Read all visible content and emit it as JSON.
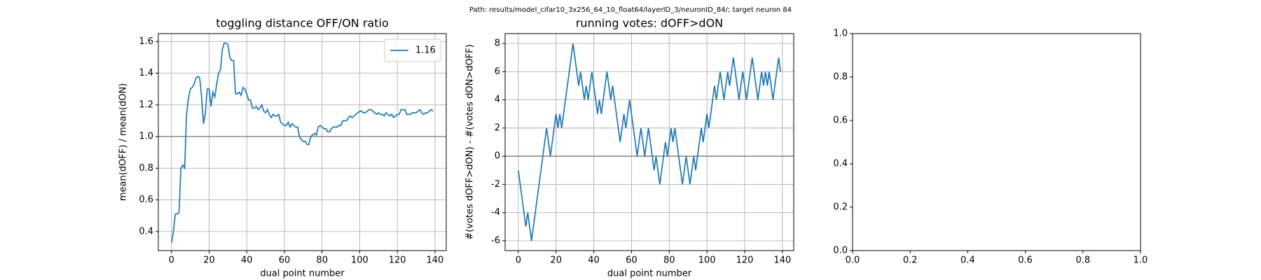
{
  "title": "Path: results/model_cifar10_3x256_64_10_float64/layerID_3/neuronID_84/; target neuron 84",
  "chart_data": [
    {
      "type": "line",
      "title": "toggling distance OFF/ON ratio",
      "xlabel": "dual point number",
      "ylabel": "mean(dOFF) / mean(dON)",
      "x": [
        0,
        1,
        2,
        3,
        4,
        5,
        6,
        7,
        8,
        9,
        10,
        11,
        12,
        13,
        14,
        15,
        16,
        17,
        18,
        19,
        20,
        21,
        22,
        23,
        24,
        25,
        26,
        27,
        28,
        29,
        30,
        31,
        32,
        33,
        34,
        35,
        36,
        37,
        38,
        39,
        40,
        41,
        42,
        43,
        44,
        45,
        46,
        47,
        48,
        49,
        50,
        51,
        52,
        53,
        54,
        55,
        56,
        57,
        58,
        59,
        60,
        61,
        62,
        63,
        64,
        65,
        66,
        67,
        68,
        69,
        70,
        71,
        72,
        73,
        74,
        75,
        76,
        77,
        78,
        79,
        80,
        81,
        82,
        83,
        84,
        85,
        86,
        87,
        88,
        89,
        90,
        91,
        92,
        93,
        94,
        95,
        96,
        97,
        98,
        99,
        100,
        101,
        102,
        103,
        104,
        105,
        106,
        107,
        108,
        109,
        110,
        111,
        112,
        113,
        114,
        115,
        116,
        117,
        118,
        119,
        120,
        121,
        122,
        123,
        124,
        125,
        126,
        127,
        128,
        129,
        130,
        131,
        132,
        133,
        134,
        135,
        136,
        137,
        138,
        139
      ],
      "series": [
        {
          "name": "1.16",
          "color": "#1f77b4",
          "values": [
            0.33,
            0.4,
            0.51,
            0.51,
            0.52,
            0.8,
            0.82,
            0.8,
            1.14,
            1.24,
            1.3,
            1.31,
            1.33,
            1.37,
            1.38,
            1.37,
            1.25,
            1.08,
            1.15,
            1.3,
            1.3,
            1.19,
            1.28,
            1.25,
            1.33,
            1.4,
            1.42,
            1.55,
            1.59,
            1.59,
            1.58,
            1.5,
            1.48,
            1.48,
            1.27,
            1.27,
            1.28,
            1.26,
            1.31,
            1.3,
            1.27,
            1.23,
            1.23,
            1.18,
            1.18,
            1.19,
            1.17,
            1.18,
            1.2,
            1.16,
            1.15,
            1.17,
            1.14,
            1.12,
            1.14,
            1.13,
            1.13,
            1.14,
            1.09,
            1.08,
            1.07,
            1.07,
            1.09,
            1.06,
            1.08,
            1.07,
            1.06,
            1.06,
            1.0,
            0.98,
            0.97,
            0.97,
            0.95,
            0.95,
            1.0,
            1.01,
            1.02,
            1.01,
            1.06,
            1.07,
            1.06,
            1.05,
            1.05,
            1.03,
            1.03,
            1.05,
            1.06,
            1.06,
            1.06,
            1.07,
            1.07,
            1.1,
            1.1,
            1.1,
            1.12,
            1.13,
            1.12,
            1.13,
            1.14,
            1.15,
            1.16,
            1.16,
            1.15,
            1.15,
            1.16,
            1.17,
            1.17,
            1.16,
            1.15,
            1.14,
            1.15,
            1.14,
            1.14,
            1.13,
            1.15,
            1.14,
            1.13,
            1.14,
            1.12,
            1.13,
            1.14,
            1.14,
            1.17,
            1.17,
            1.17,
            1.14,
            1.14,
            1.14,
            1.15,
            1.15,
            1.15,
            1.16,
            1.17,
            1.15,
            1.14,
            1.15,
            1.15,
            1.16,
            1.17,
            1.16
          ]
        }
      ],
      "xlim": [
        -7,
        146
      ],
      "xticks": [
        0,
        20,
        40,
        60,
        80,
        100,
        120,
        140
      ],
      "ylim": [
        0.28,
        1.65
      ],
      "yticks": [
        0.4,
        0.6,
        0.8,
        {
          "value": 1,
          "label": "1.0"
        },
        1.2,
        1.4,
        1.6
      ],
      "hline": 1,
      "hline_color": "#808080",
      "grid": true,
      "legend": "upper-right"
    },
    {
      "type": "line",
      "title": "running votes: dOFF>dON",
      "xlabel": "dual point number",
      "ylabel": "#(votes dOFF>dON) - #(votes dON>dOFF)",
      "x": [
        0,
        1,
        2,
        3,
        4,
        5,
        6,
        7,
        8,
        9,
        10,
        11,
        12,
        13,
        14,
        15,
        16,
        17,
        18,
        19,
        20,
        21,
        22,
        23,
        24,
        25,
        26,
        27,
        28,
        29,
        30,
        31,
        32,
        33,
        34,
        35,
        36,
        37,
        38,
        39,
        40,
        41,
        42,
        43,
        44,
        45,
        46,
        47,
        48,
        49,
        50,
        51,
        52,
        53,
        54,
        55,
        56,
        57,
        58,
        59,
        60,
        61,
        62,
        63,
        64,
        65,
        66,
        67,
        68,
        69,
        70,
        71,
        72,
        73,
        74,
        75,
        76,
        77,
        78,
        79,
        80,
        81,
        82,
        83,
        84,
        85,
        86,
        87,
        88,
        89,
        90,
        91,
        92,
        93,
        94,
        95,
        96,
        97,
        98,
        99,
        100,
        101,
        102,
        103,
        104,
        105,
        106,
        107,
        108,
        109,
        110,
        111,
        112,
        113,
        114,
        115,
        116,
        117,
        118,
        119,
        120,
        121,
        122,
        123,
        124,
        125,
        126,
        127,
        128,
        129,
        130,
        131,
        132,
        133,
        134,
        135,
        136,
        137,
        138,
        139
      ],
      "series": [
        {
          "color": "#1f77b4",
          "values": [
            -1,
            -2,
            -3,
            -4,
            -5,
            -4,
            -5,
            -6,
            -5,
            -4,
            -3,
            -2,
            -1,
            0,
            1,
            2,
            1,
            0,
            1,
            2,
            3,
            2,
            3,
            2,
            3,
            4,
            5,
            6,
            7,
            8,
            7,
            6,
            5,
            6,
            5,
            4,
            5,
            4,
            5,
            6,
            5,
            4,
            3,
            4,
            3,
            4,
            5,
            6,
            5,
            4,
            5,
            4,
            3,
            2,
            1,
            2,
            3,
            2,
            3,
            4,
            3,
            2,
            1,
            0,
            1,
            2,
            1,
            0,
            1,
            2,
            1,
            0,
            -1,
            0,
            -1,
            -2,
            -1,
            0,
            1,
            0,
            1,
            2,
            1,
            2,
            1,
            0,
            -1,
            -2,
            -1,
            0,
            -1,
            -2,
            -1,
            0,
            -1,
            0,
            1,
            2,
            1,
            2,
            3,
            2,
            3,
            4,
            5,
            4,
            5,
            6,
            5,
            4,
            5,
            6,
            5,
            6,
            7,
            6,
            5,
            4,
            5,
            6,
            5,
            4,
            5,
            6,
            7,
            6,
            5,
            4,
            5,
            6,
            5,
            6,
            5,
            6,
            5,
            4,
            5,
            6,
            7,
            6
          ]
        }
      ],
      "xlim": [
        -7,
        146
      ],
      "xticks": [
        0,
        20,
        40,
        60,
        80,
        100,
        120,
        140
      ],
      "ylim": [
        -6.7,
        8.7
      ],
      "yticks": [
        -6,
        -4,
        -2,
        0,
        2,
        4,
        6,
        8
      ],
      "hline": 0,
      "hline_color": "#808080",
      "grid": true
    },
    {
      "type": "empty",
      "xlim": [
        0,
        1
      ],
      "xticks": [
        {
          "value": 0,
          "label": "0.0"
        },
        0.2,
        0.4,
        0.6,
        0.8,
        {
          "value": 1,
          "label": "1.0"
        }
      ],
      "ylim": [
        0,
        1
      ],
      "yticks": [
        {
          "value": 0,
          "label": "0.0"
        },
        0.2,
        0.4,
        0.6,
        0.8,
        {
          "value": 1,
          "label": "1.0"
        }
      ],
      "grid": false
    }
  ]
}
